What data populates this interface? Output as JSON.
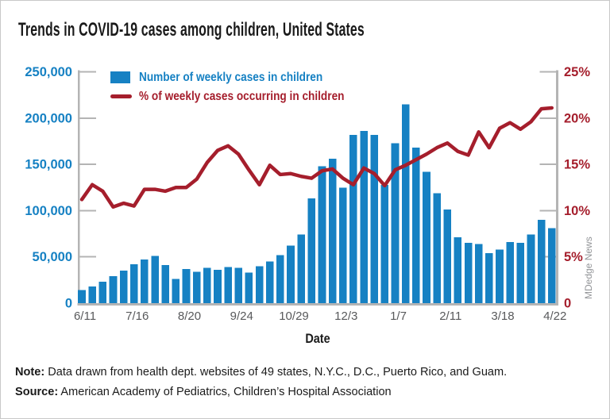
{
  "title": "Trends in COVID-19 cases among children, United States",
  "colors": {
    "bar_blue": "#1681c3",
    "line_red": "#a51e2c",
    "axis_gray": "#b4b4b4",
    "xlabel_gray": "#58595b",
    "watermark_gray": "#939598",
    "text_black": "#1a1a1a"
  },
  "legend": {
    "items": [
      {
        "label": "Number of weekly cases in children",
        "color": "#1681c3",
        "swatch": "bar"
      },
      {
        "label": "% of weekly cases occurring in children",
        "color": "#a51e2c",
        "swatch": "line"
      }
    ]
  },
  "y_left": {
    "tick_labels": [
      "0",
      "50,000",
      "100,000",
      "150,000",
      "200,000",
      "250,000"
    ],
    "color": "#1681c3"
  },
  "y_right": {
    "tick_labels": [
      "0",
      "5%",
      "10%",
      "15%",
      "20%",
      "25%"
    ],
    "color": "#a51e2c"
  },
  "x_axis": {
    "title": "Date",
    "tick_labels": [
      "6/11",
      "7/16",
      "8/20",
      "9/24",
      "10/29",
      "12/3",
      "1/7",
      "2/11",
      "3/18",
      "4/22"
    ],
    "tick_every": 5
  },
  "watermark": "MDedge News",
  "note": {
    "label": "Note:",
    "text": " Data drawn from health dept. websites of 49 states, N.Y.C., D.C., Puerto Rico, and Guam."
  },
  "source": {
    "label": "Source:",
    "text": " American Academy of Pediatrics, Children’s Hospital Association"
  },
  "chart_data": {
    "type": "bar",
    "title": "Trends in COVID-19 cases among children, United States",
    "xlabel": "Date",
    "x": [
      "6/11",
      "6/18",
      "6/25",
      "7/2",
      "7/9",
      "7/16",
      "7/23",
      "7/30",
      "8/6",
      "8/13",
      "8/20",
      "8/27",
      "9/3",
      "9/10",
      "9/17",
      "9/24",
      "10/1",
      "10/8",
      "10/15",
      "10/22",
      "10/29",
      "11/5",
      "11/12",
      "11/19",
      "11/26",
      "12/3",
      "12/10",
      "12/17",
      "12/24",
      "12/31",
      "1/7",
      "1/14",
      "1/21",
      "1/28",
      "2/4",
      "2/11",
      "2/18",
      "2/25",
      "3/4",
      "3/11",
      "3/18",
      "3/25",
      "4/1",
      "4/8",
      "4/15",
      "4/22"
    ],
    "labeled_ticks": [
      "6/11",
      "7/16",
      "8/20",
      "9/24",
      "10/29",
      "12/3",
      "1/7",
      "2/11",
      "3/18",
      "4/22"
    ],
    "left_ylim": [
      0,
      250000
    ],
    "right_ylim": [
      0,
      25
    ],
    "grid": false,
    "legend_position": "top-left-inside",
    "series": [
      {
        "name": "Number of weekly cases in children",
        "type": "bar",
        "axis": "left",
        "color": "#1681c3",
        "values": [
          14000,
          18000,
          23000,
          29000,
          35000,
          42000,
          47000,
          51000,
          41000,
          26000,
          37000,
          34000,
          38000,
          36000,
          39000,
          38000,
          33000,
          40000,
          45000,
          52000,
          62000,
          74000,
          113000,
          148000,
          156000,
          125000,
          182000,
          186000,
          182000,
          128000,
          173000,
          215000,
          168000,
          142000,
          119000,
          101000,
          71000,
          65000,
          64000,
          54000,
          58000,
          66000,
          65000,
          74000,
          90000,
          81000
        ]
      },
      {
        "name": "% of weekly cases occurring in children",
        "type": "line",
        "axis": "right",
        "color": "#a51e2c",
        "values": [
          11.2,
          12.8,
          12.1,
          10.4,
          10.8,
          10.5,
          12.3,
          12.3,
          12.1,
          12.5,
          12.5,
          13.4,
          15.2,
          16.5,
          17.0,
          16.1,
          14.4,
          12.8,
          14.9,
          13.9,
          14.0,
          13.7,
          13.5,
          14.3,
          14.5,
          13.5,
          12.8,
          14.6,
          14.0,
          12.7,
          14.4,
          14.9,
          15.5,
          16.1,
          16.8,
          17.3,
          16.4,
          16.0,
          18.5,
          16.8,
          18.9,
          19.5,
          18.8,
          19.6,
          21.0,
          21.1
        ]
      }
    ]
  }
}
